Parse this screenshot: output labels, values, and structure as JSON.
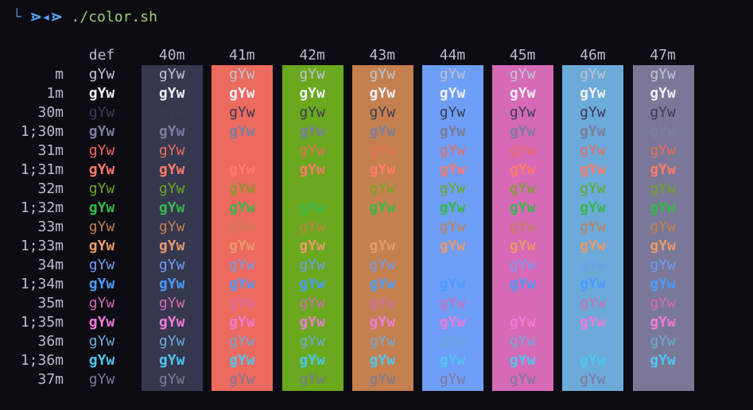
{
  "prompt": {
    "corner": "└",
    "symbol": "⋗◂⋗",
    "command": "./color.sh"
  },
  "columns": [
    {
      "label": "def",
      "bg": null
    },
    {
      "label": "40m",
      "bg": "#363850"
    },
    {
      "label": "41m",
      "bg": "#ec6a5e"
    },
    {
      "label": "42m",
      "bg": "#6aa81e"
    },
    {
      "label": "43m",
      "bg": "#c4804f"
    },
    {
      "label": "44m",
      "bg": "#6e9ef6"
    },
    {
      "label": "45m",
      "bg": "#d66ab6"
    },
    {
      "label": "46m",
      "bg": "#6caad9"
    },
    {
      "label": "47m",
      "bg": "#7a7898"
    }
  ],
  "sample_text": "gYw",
  "rows": [
    {
      "label": "m",
      "fg": "#bfc4d3",
      "bold": false
    },
    {
      "label": "1m",
      "fg": "#eef0f7",
      "bold": true
    },
    {
      "label": "30m",
      "fg": "#3a3c52",
      "bold": false
    },
    {
      "label": "1;30m",
      "fg": "#7b7e9c",
      "bold": true
    },
    {
      "label": "31m",
      "fg": "#ec6a5e",
      "bold": false
    },
    {
      "label": "1;31m",
      "fg": "#ff7a6a",
      "bold": true
    },
    {
      "label": "32m",
      "fg": "#6aa81e",
      "bold": false
    },
    {
      "label": "1;32m",
      "fg": "#36b84a",
      "bold": true
    },
    {
      "label": "33m",
      "fg": "#c4804f",
      "bold": false
    },
    {
      "label": "1;33m",
      "fg": "#e89a6a",
      "bold": true
    },
    {
      "label": "34m",
      "fg": "#6e9ef6",
      "bold": false
    },
    {
      "label": "1;34m",
      "fg": "#4a9cff",
      "bold": true
    },
    {
      "label": "35m",
      "fg": "#d66ab6",
      "bold": false
    },
    {
      "label": "1;35m",
      "fg": "#f07ad6",
      "bold": true
    },
    {
      "label": "36m",
      "fg": "#6caad9",
      "bold": false
    },
    {
      "label": "1;36m",
      "fg": "#4ec6f0",
      "bold": true
    },
    {
      "label": "37m",
      "fg": "#7a7898",
      "bold": false
    }
  ]
}
